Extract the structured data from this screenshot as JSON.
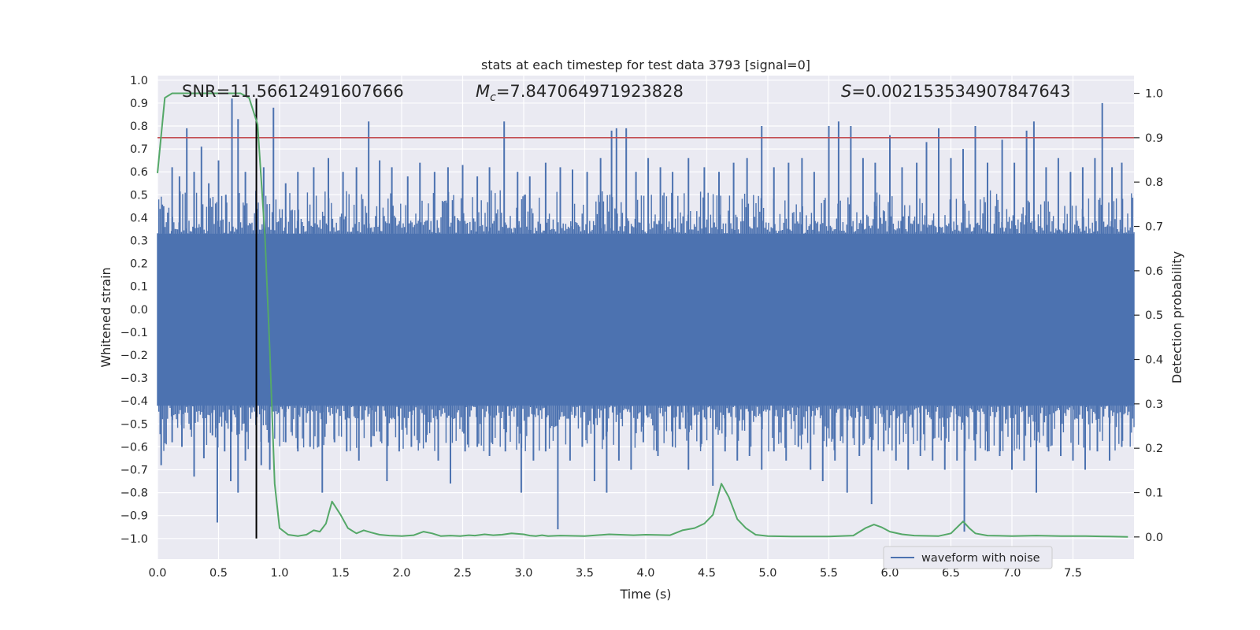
{
  "chart_data": {
    "type": "line",
    "title": "stats at each timestep for test data 3793 [signal=0]",
    "xlabel": "Time (s)",
    "ylabel": "Whitened strain",
    "y2label": "Detection probability",
    "xlim": [
      0.0,
      8.0
    ],
    "ylim": [
      -1.09,
      1.02
    ],
    "y2lim": [
      -0.05,
      1.04
    ],
    "x_ticks": [
      "0.0",
      "0.5",
      "1.0",
      "1.5",
      "2.0",
      "2.5",
      "3.0",
      "3.5",
      "4.0",
      "4.5",
      "5.0",
      "5.5",
      "6.0",
      "6.5",
      "7.0",
      "7.5"
    ],
    "y_ticks": [
      "1.0",
      "0.9",
      "0.8",
      "0.7",
      "0.6",
      "0.5",
      "0.4",
      "0.3",
      "0.2",
      "0.1",
      "0.0",
      "−0.1",
      "−0.2",
      "−0.3",
      "−0.4",
      "−0.5",
      "−0.6",
      "−0.7",
      "−0.8",
      "−0.9",
      "−1.0"
    ],
    "y2_ticks": [
      "1.0",
      "0.9",
      "0.8",
      "0.7",
      "0.6",
      "0.5",
      "0.4",
      "0.3",
      "0.2",
      "0.1",
      "0.0"
    ],
    "annotations": {
      "snr": "SNR=11.56612491607666",
      "mc_symbol": "M",
      "mc_sub": "c",
      "mc_value": "=7.847064971923828",
      "s_symbol": "S",
      "s_value": "=0.002153534907847643"
    },
    "threshold": {
      "value": 0.9,
      "axis": "right",
      "color": "#c44e52"
    },
    "marker_line": {
      "x": 0.81,
      "ymin": -1.0,
      "ymax": 0.92,
      "color": "#000000"
    },
    "legend": {
      "label": "waveform with noise",
      "location": "lower-right"
    },
    "series": [
      {
        "name": "waveform with noise",
        "axis": "left",
        "color": "#4c72b0",
        "band": [
          -0.42,
          0.33
        ],
        "spikes_up": [
          [
            0.05,
            0.45
          ],
          [
            0.12,
            0.62
          ],
          [
            0.18,
            0.58
          ],
          [
            0.24,
            0.79
          ],
          [
            0.3,
            0.6
          ],
          [
            0.36,
            0.71
          ],
          [
            0.42,
            0.55
          ],
          [
            0.5,
            0.65
          ],
          [
            0.56,
            0.5
          ],
          [
            0.61,
            0.92
          ],
          [
            0.66,
            0.83
          ],
          [
            0.72,
            0.6
          ],
          [
            0.87,
            0.62
          ],
          [
            0.95,
            0.88
          ],
          [
            1.05,
            0.55
          ],
          [
            1.15,
            0.6
          ],
          [
            1.28,
            0.62
          ],
          [
            1.4,
            0.66
          ],
          [
            1.52,
            0.6
          ],
          [
            1.63,
            0.62
          ],
          [
            1.73,
            0.82
          ],
          [
            1.82,
            0.65
          ],
          [
            1.92,
            0.62
          ],
          [
            2.05,
            0.58
          ],
          [
            2.15,
            0.64
          ],
          [
            2.27,
            0.6
          ],
          [
            2.38,
            0.62
          ],
          [
            2.5,
            0.63
          ],
          [
            2.62,
            0.58
          ],
          [
            2.72,
            0.62
          ],
          [
            2.84,
            0.82
          ],
          [
            2.95,
            0.6
          ],
          [
            3.05,
            0.58
          ],
          [
            3.18,
            0.64
          ],
          [
            3.3,
            0.62
          ],
          [
            3.4,
            0.61
          ],
          [
            3.52,
            0.6
          ],
          [
            3.63,
            0.66
          ],
          [
            3.72,
            0.78
          ],
          [
            3.76,
            0.79
          ],
          [
            3.84,
            0.79
          ],
          [
            3.92,
            0.6
          ],
          [
            4.02,
            0.66
          ],
          [
            4.12,
            0.62
          ],
          [
            4.22,
            0.6
          ],
          [
            4.35,
            0.66
          ],
          [
            4.48,
            0.62
          ],
          [
            4.6,
            0.6
          ],
          [
            4.72,
            0.64
          ],
          [
            4.83,
            0.66
          ],
          [
            4.95,
            0.8
          ],
          [
            5.05,
            0.62
          ],
          [
            5.17,
            0.64
          ],
          [
            5.28,
            0.66
          ],
          [
            5.38,
            0.6
          ],
          [
            5.5,
            0.8
          ],
          [
            5.58,
            0.82
          ],
          [
            5.68,
            0.8
          ],
          [
            5.78,
            0.66
          ],
          [
            5.88,
            0.64
          ],
          [
            6.0,
            0.76
          ],
          [
            6.1,
            0.62
          ],
          [
            6.22,
            0.64
          ],
          [
            6.3,
            0.73
          ],
          [
            6.4,
            0.79
          ],
          [
            6.5,
            0.66
          ],
          [
            6.6,
            0.7
          ],
          [
            6.7,
            0.8
          ],
          [
            6.8,
            0.64
          ],
          [
            6.92,
            0.74
          ],
          [
            7.02,
            0.64
          ],
          [
            7.12,
            0.78
          ],
          [
            7.18,
            0.82
          ],
          [
            7.28,
            0.62
          ],
          [
            7.38,
            0.66
          ],
          [
            7.48,
            0.6
          ],
          [
            7.58,
            0.62
          ],
          [
            7.68,
            0.66
          ],
          [
            7.74,
            0.9
          ],
          [
            7.82,
            0.62
          ],
          [
            7.9,
            0.64
          ]
        ],
        "spikes_down": [
          [
            0.03,
            -0.68
          ],
          [
            0.12,
            -0.58
          ],
          [
            0.2,
            -0.6
          ],
          [
            0.3,
            -0.73
          ],
          [
            0.38,
            -0.65
          ],
          [
            0.45,
            -0.55
          ],
          [
            0.49,
            -0.93
          ],
          [
            0.55,
            -0.62
          ],
          [
            0.6,
            -0.75
          ],
          [
            0.66,
            -0.8
          ],
          [
            0.72,
            -0.66
          ],
          [
            0.85,
            -0.68
          ],
          [
            0.92,
            -0.7
          ],
          [
            1.05,
            -0.58
          ],
          [
            1.15,
            -0.62
          ],
          [
            1.25,
            -0.6
          ],
          [
            1.35,
            -0.8
          ],
          [
            1.45,
            -0.58
          ],
          [
            1.55,
            -0.62
          ],
          [
            1.65,
            -0.66
          ],
          [
            1.75,
            -0.6
          ],
          [
            1.88,
            -0.75
          ],
          [
            1.98,
            -0.62
          ],
          [
            2.08,
            -0.6
          ],
          [
            2.2,
            -0.58
          ],
          [
            2.3,
            -0.66
          ],
          [
            2.4,
            -0.76
          ],
          [
            2.52,
            -0.62
          ],
          [
            2.62,
            -0.6
          ],
          [
            2.72,
            -0.64
          ],
          [
            2.85,
            -0.62
          ],
          [
            2.98,
            -0.8
          ],
          [
            3.08,
            -0.66
          ],
          [
            3.18,
            -0.62
          ],
          [
            3.28,
            -0.96
          ],
          [
            3.38,
            -0.66
          ],
          [
            3.48,
            -0.6
          ],
          [
            3.58,
            -0.75
          ],
          [
            3.68,
            -0.8
          ],
          [
            3.78,
            -0.66
          ],
          [
            3.88,
            -0.7
          ],
          [
            3.98,
            -0.58
          ],
          [
            4.1,
            -0.64
          ],
          [
            4.22,
            -0.6
          ],
          [
            4.35,
            -0.7
          ],
          [
            4.45,
            -0.6
          ],
          [
            4.55,
            -0.77
          ],
          [
            4.65,
            -0.62
          ],
          [
            4.75,
            -0.66
          ],
          [
            4.85,
            -0.64
          ],
          [
            4.95,
            -0.7
          ],
          [
            5.05,
            -0.62
          ],
          [
            5.15,
            -0.66
          ],
          [
            5.25,
            -0.6
          ],
          [
            5.35,
            -0.7
          ],
          [
            5.45,
            -0.75
          ],
          [
            5.55,
            -0.66
          ],
          [
            5.65,
            -0.8
          ],
          [
            5.75,
            -0.64
          ],
          [
            5.85,
            -0.85
          ],
          [
            5.95,
            -0.62
          ],
          [
            6.05,
            -0.66
          ],
          [
            6.15,
            -0.7
          ],
          [
            6.25,
            -0.64
          ],
          [
            6.35,
            -0.66
          ],
          [
            6.45,
            -0.7
          ],
          [
            6.55,
            -0.66
          ],
          [
            6.61,
            -0.97
          ],
          [
            6.7,
            -0.66
          ],
          [
            6.8,
            -0.62
          ],
          [
            6.9,
            -0.64
          ],
          [
            7.0,
            -0.7
          ],
          [
            7.1,
            -0.66
          ],
          [
            7.2,
            -0.8
          ],
          [
            7.3,
            -0.62
          ],
          [
            7.4,
            -0.64
          ],
          [
            7.5,
            -0.66
          ],
          [
            7.6,
            -0.7
          ],
          [
            7.7,
            -0.62
          ],
          [
            7.8,
            -0.66
          ],
          [
            7.9,
            -0.6
          ]
        ]
      },
      {
        "name": "detection probability",
        "axis": "right",
        "color": "#55a868",
        "x": [
          0.0,
          0.06,
          0.12,
          0.2,
          0.3,
          0.4,
          0.5,
          0.6,
          0.68,
          0.75,
          0.82,
          0.88,
          0.92,
          0.96,
          1.0,
          1.07,
          1.15,
          1.22,
          1.28,
          1.33,
          1.38,
          1.43,
          1.5,
          1.56,
          1.63,
          1.69,
          1.75,
          1.82,
          1.9,
          2.0,
          2.1,
          2.18,
          2.25,
          2.32,
          2.4,
          2.48,
          2.55,
          2.6,
          2.68,
          2.75,
          2.82,
          2.9,
          2.95,
          3.0,
          3.05,
          3.1,
          3.15,
          3.2,
          3.3,
          3.5,
          3.7,
          3.9,
          4.0,
          4.2,
          4.3,
          4.4,
          4.48,
          4.55,
          4.62,
          4.68,
          4.75,
          4.82,
          4.9,
          5.0,
          5.2,
          5.5,
          5.7,
          5.8,
          5.87,
          5.93,
          6.0,
          6.1,
          6.2,
          6.4,
          6.5,
          6.6,
          6.65,
          6.7,
          6.8,
          7.0,
          7.2,
          7.4,
          7.6,
          7.8,
          7.95
        ],
        "y": [
          0.82,
          0.99,
          1.0,
          1.0,
          1.0,
          1.0,
          1.0,
          1.0,
          1.0,
          0.99,
          0.93,
          0.68,
          0.42,
          0.12,
          0.02,
          0.005,
          0.002,
          0.005,
          0.015,
          0.012,
          0.03,
          0.08,
          0.05,
          0.02,
          0.008,
          0.015,
          0.01,
          0.005,
          0.003,
          0.002,
          0.004,
          0.012,
          0.008,
          0.002,
          0.003,
          0.002,
          0.004,
          0.003,
          0.006,
          0.004,
          0.005,
          0.008,
          0.007,
          0.006,
          0.003,
          0.002,
          0.004,
          0.002,
          0.003,
          0.002,
          0.006,
          0.004,
          0.005,
          0.004,
          0.015,
          0.02,
          0.03,
          0.05,
          0.12,
          0.09,
          0.04,
          0.02,
          0.005,
          0.002,
          0.001,
          0.001,
          0.003,
          0.02,
          0.028,
          0.022,
          0.012,
          0.006,
          0.003,
          0.002,
          0.008,
          0.035,
          0.02,
          0.008,
          0.003,
          0.002,
          0.003,
          0.002,
          0.002,
          0.001,
          0.0
        ]
      }
    ]
  }
}
